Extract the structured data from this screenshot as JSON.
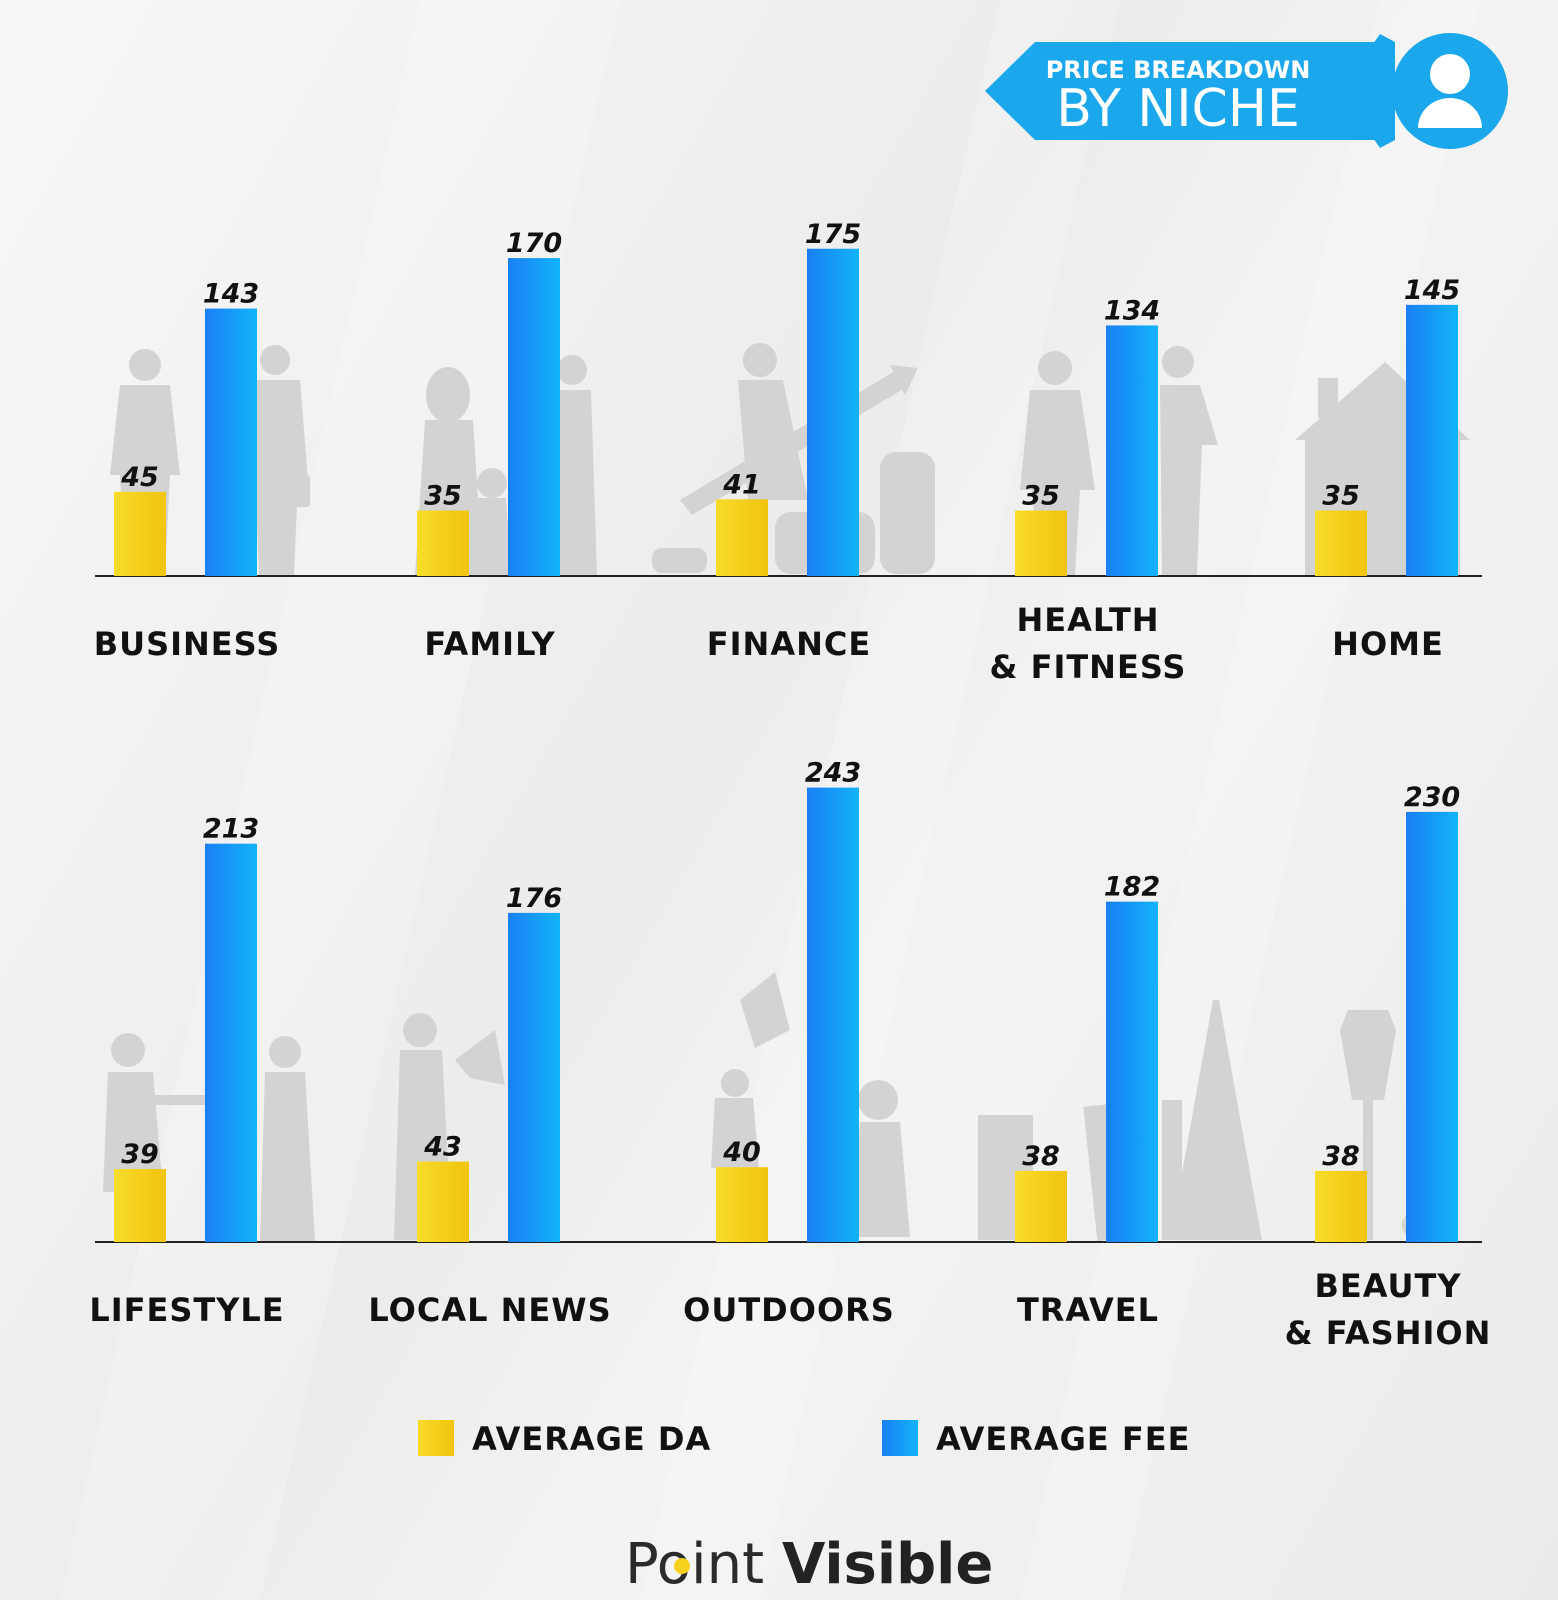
{
  "banner": {
    "line1": "PRICE BREAKDOWN",
    "line2": "BY NICHE",
    "icon": "user-icon"
  },
  "legend": [
    {
      "label": "AVERAGE DA",
      "color": "#f5d21e"
    },
    {
      "label": "AVERAGE FEE",
      "color": "#1e90ff"
    }
  ],
  "logo": {
    "part1": "Point",
    "part2": "Visible"
  },
  "colors": {
    "da": "#f5d21e",
    "fee": "#1e90ff",
    "banner": "#1aa7ec"
  },
  "chart_data": {
    "type": "bar",
    "series": [
      {
        "name": "AVERAGE DA"
      },
      {
        "name": "AVERAGE FEE"
      }
    ],
    "rows": [
      {
        "groups": [
          {
            "label": [
              "BUSINESS"
            ],
            "da": 45,
            "fee": 143
          },
          {
            "label": [
              "FAMILY"
            ],
            "da": 35,
            "fee": 170
          },
          {
            "label": [
              "FINANCE"
            ],
            "da": 41,
            "fee": 175
          },
          {
            "label": [
              "HEALTH",
              "& FITNESS"
            ],
            "da": 35,
            "fee": 134
          },
          {
            "label": [
              "HOME"
            ],
            "da": 35,
            "fee": 145
          }
        ]
      },
      {
        "groups": [
          {
            "label": [
              "LIFESTYLE"
            ],
            "da": 39,
            "fee": 213
          },
          {
            "label": [
              "LOCAL NEWS"
            ],
            "da": 43,
            "fee": 176
          },
          {
            "label": [
              "OUTDOORS"
            ],
            "da": 40,
            "fee": 243
          },
          {
            "label": [
              "TRAVEL"
            ],
            "da": 38,
            "fee": 182
          },
          {
            "label": [
              "BEAUTY",
              "& FASHION"
            ],
            "da": 38,
            "fee": 230
          }
        ]
      }
    ]
  }
}
